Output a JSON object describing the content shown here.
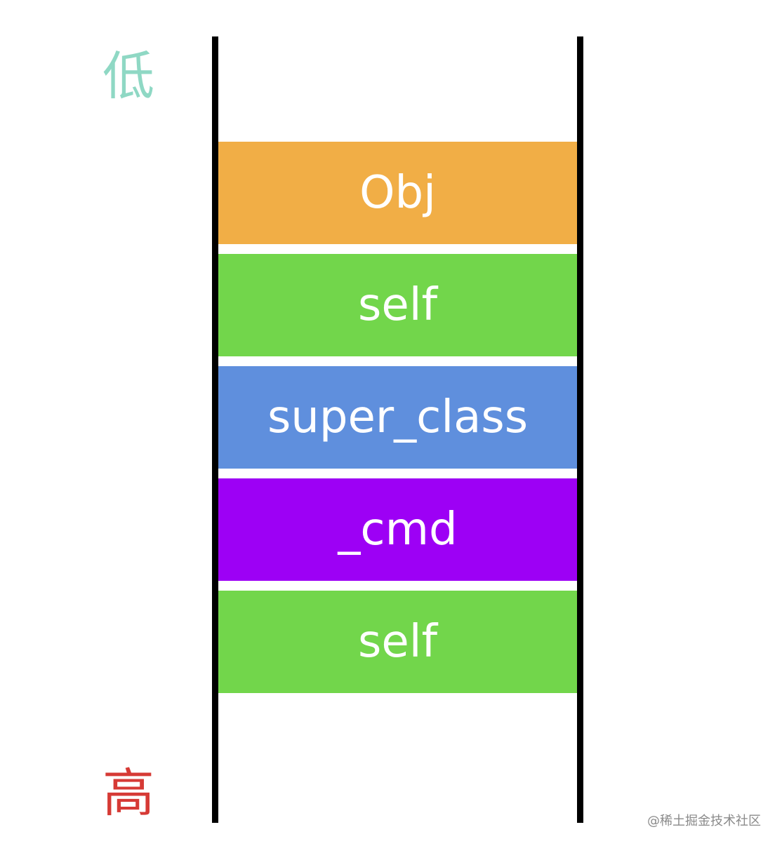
{
  "labels": {
    "low": "低",
    "high": "高"
  },
  "colors": {
    "low_label": "#8fd8c4",
    "high_label": "#d63a35",
    "wall": "#000000",
    "text": "#ffffff"
  },
  "stack": [
    {
      "label": "Obj",
      "color": "#f1ae46"
    },
    {
      "label": "self",
      "color": "#72d64b"
    },
    {
      "label": "super_class",
      "color": "#5f8fdd"
    },
    {
      "label": "_cmd",
      "color": "#9d00f5"
    },
    {
      "label": "self",
      "color": "#72d64b"
    }
  ],
  "watermark": "@稀土掘金技术社区"
}
